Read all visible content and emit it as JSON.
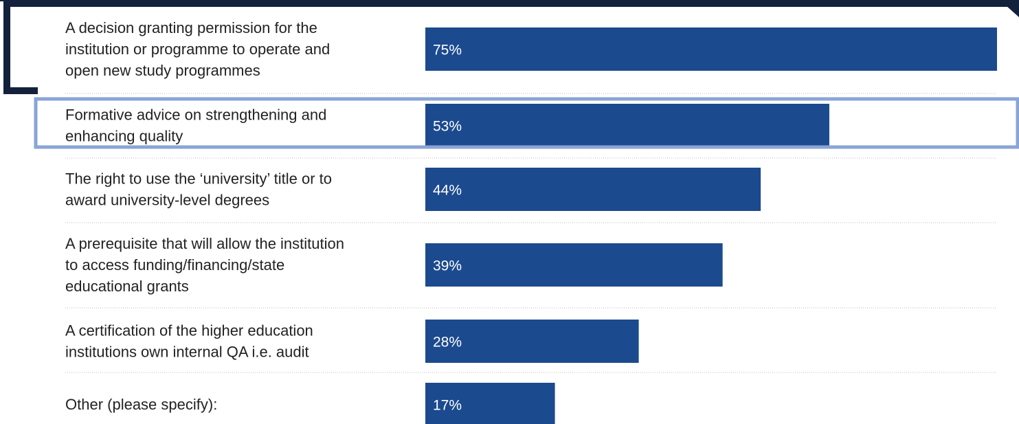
{
  "chart_data": {
    "type": "bar",
    "orientation": "horizontal",
    "categories": [
      "A decision granting permission for the institution or programme to operate and open new study programmes",
      "Formative advice on strengthening and enhancing quality",
      "The right to use the ‘university’ title or to award university-level degrees",
      "A prerequisite that will allow the institution to access funding/financing/state educational grants",
      "A certification of the higher education institutions own internal QA i.e. audit",
      "Other (please specify):"
    ],
    "category_lines": [
      [
        "A decision granting permission for the",
        "institution or programme to operate and",
        "open new study programmes"
      ],
      [
        "Formative advice on strengthening and",
        "enhancing quality"
      ],
      [
        "The right to use the ‘university’ title or to",
        "award university-level degrees"
      ],
      [
        "A prerequisite that will allow the institution",
        "to access funding/financing/state",
        "educational grants"
      ],
      [
        "A certification of the higher education",
        "institutions own internal QA i.e. audit"
      ],
      [
        "Other (please specify):"
      ]
    ],
    "values": [
      75,
      53,
      44,
      39,
      28,
      17
    ],
    "value_labels": [
      "75%",
      "53%",
      "44%",
      "39%",
      "28%",
      "17%"
    ],
    "unit": "%",
    "xlim": [
      0,
      75
    ],
    "bar_color": "#1b4a8e",
    "label_color": "#ffffff",
    "text_color": "#222222",
    "separator_color": "#bbbbbb",
    "grid": false,
    "legend": "none"
  },
  "highlight": {
    "dark_frame_color": "#13213d",
    "light_frame_color": "#8aa4d6"
  }
}
